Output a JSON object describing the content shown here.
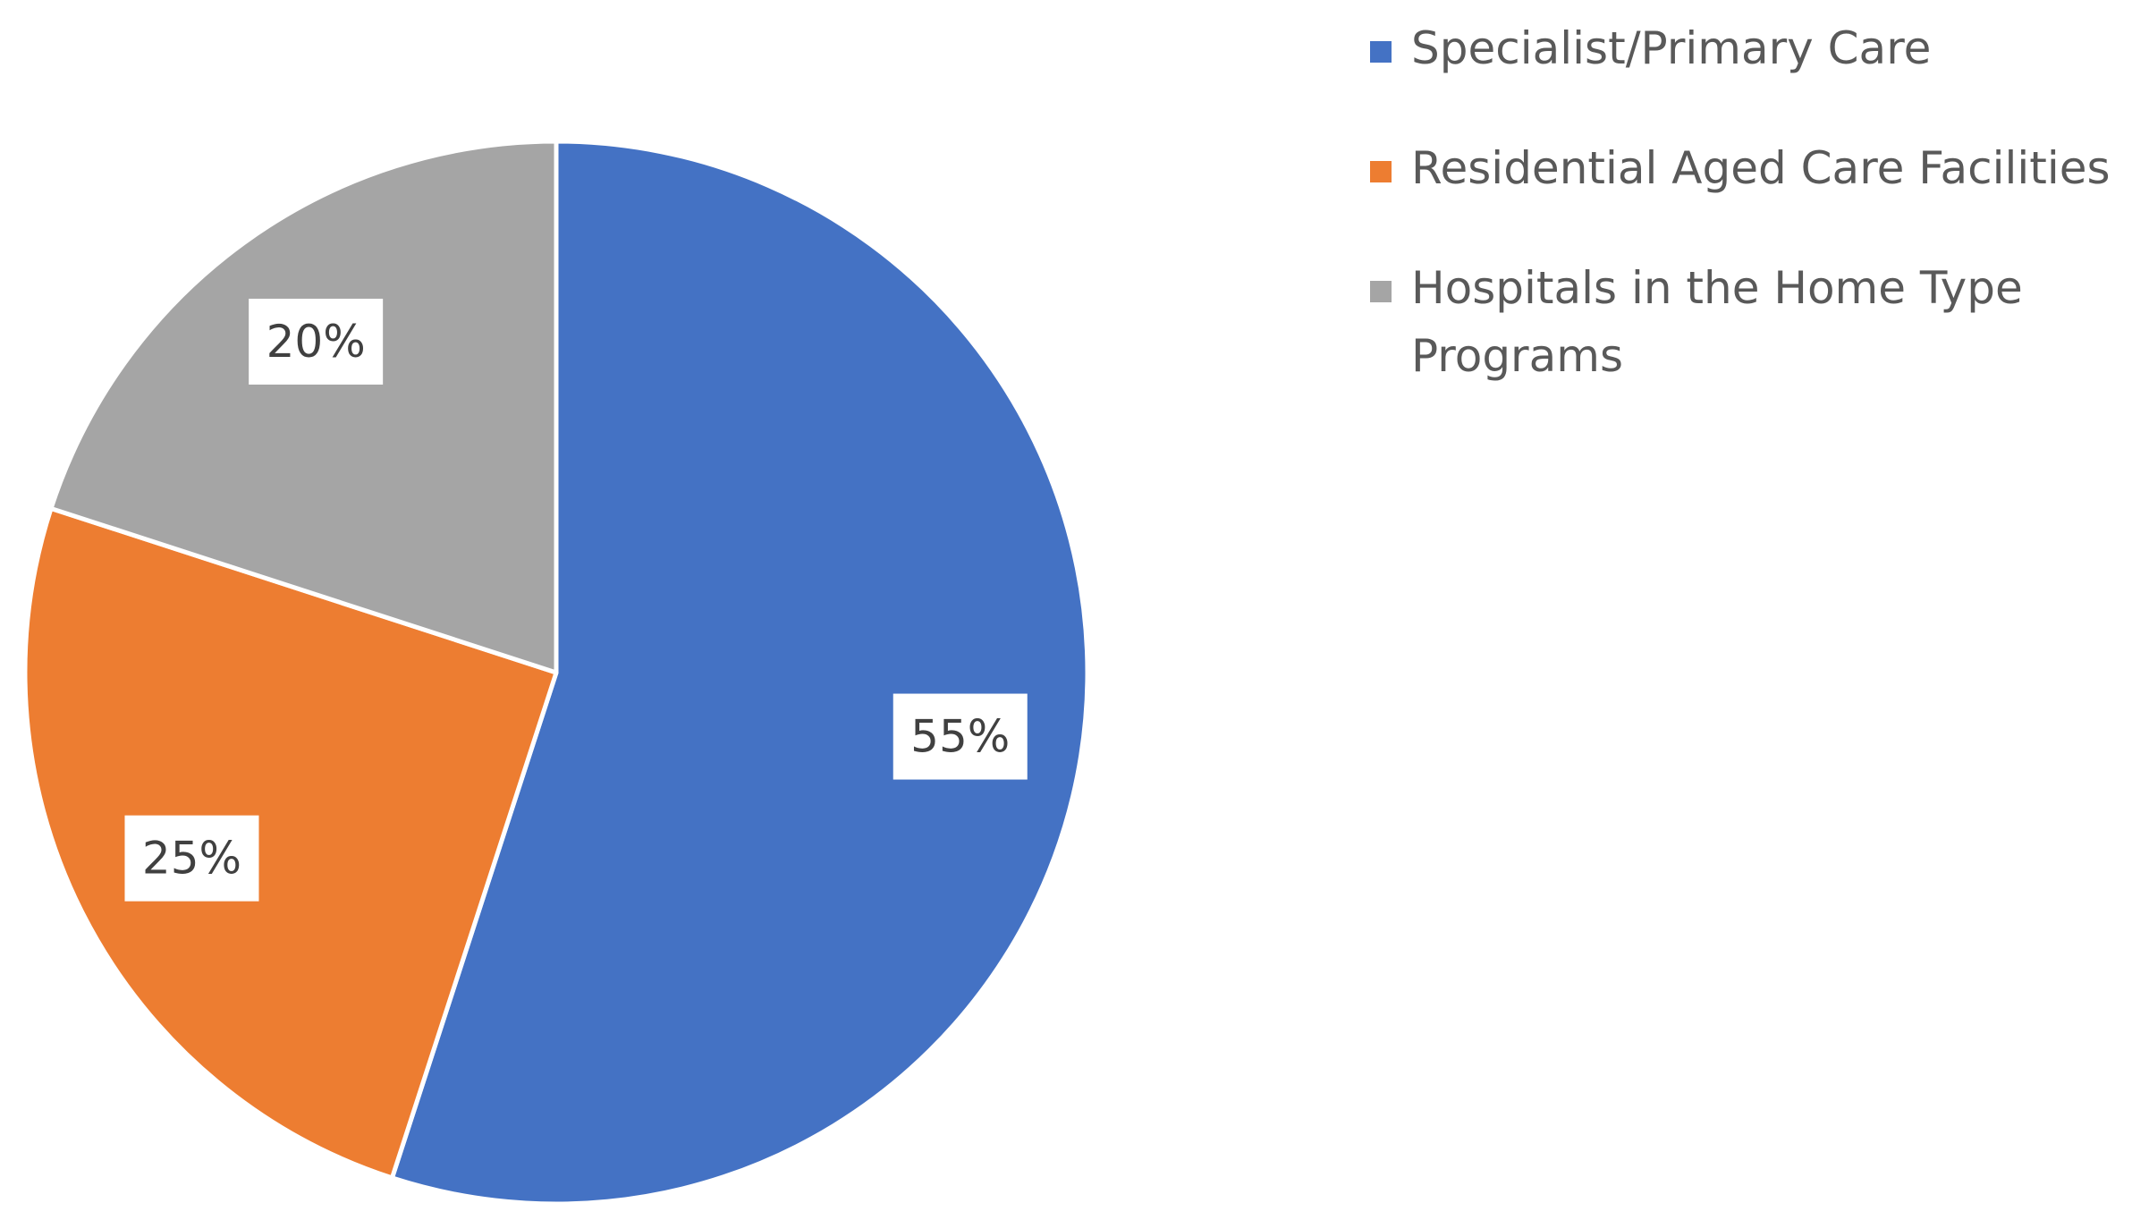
{
  "chart_data": {
    "type": "pie",
    "title": "",
    "slices": [
      {
        "name": "Specialist/Primary Care",
        "value": 55,
        "label": "55%",
        "color": "#4472C4"
      },
      {
        "name": "Residential Aged Care Facilities",
        "value": 25,
        "label": "25%",
        "color": "#ED7D31"
      },
      {
        "name": "Hospitals in the Home Type Programs",
        "value": 20,
        "label": "20%",
        "color": "#A5A5A5"
      }
    ],
    "legend": {
      "placement": "top-right",
      "entries": [
        "Specialist/Primary Care",
        "Residential Aged Care Facilities",
        "Hospitals in the Home Type Programs"
      ]
    },
    "start_angle": "12 o'clock",
    "direction": "clockwise"
  }
}
